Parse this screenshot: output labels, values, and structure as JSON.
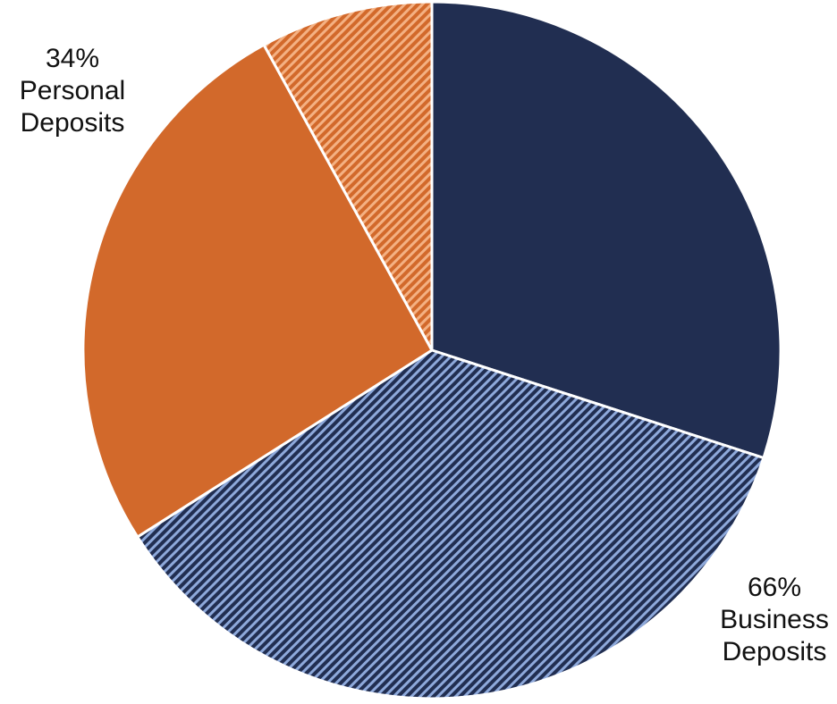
{
  "chart_data": {
    "type": "pie",
    "start_angle_deg": 0,
    "direction": "clockwise",
    "slices": [
      {
        "group": "business",
        "value": 30,
        "color": "#212e51",
        "pattern": "solid"
      },
      {
        "group": "business",
        "value": 36,
        "color": "#212e51",
        "pattern": "diagonal-stripes",
        "stripe_color": "#8ea9db"
      },
      {
        "group": "personal",
        "value": 26,
        "color": "#d2692b",
        "pattern": "solid"
      },
      {
        "group": "personal",
        "value": 8,
        "color": "#d2692b",
        "pattern": "diagonal-stripes",
        "stripe_color": "#f4b183"
      }
    ],
    "groups": [
      {
        "key": "business",
        "percent": "66%",
        "line1": "Business",
        "line2": "Deposits",
        "total": 66
      },
      {
        "key": "personal",
        "percent": "34%",
        "line1": "Personal",
        "line2": "Deposits",
        "total": 34
      }
    ],
    "separator_color": "#ffffff"
  }
}
